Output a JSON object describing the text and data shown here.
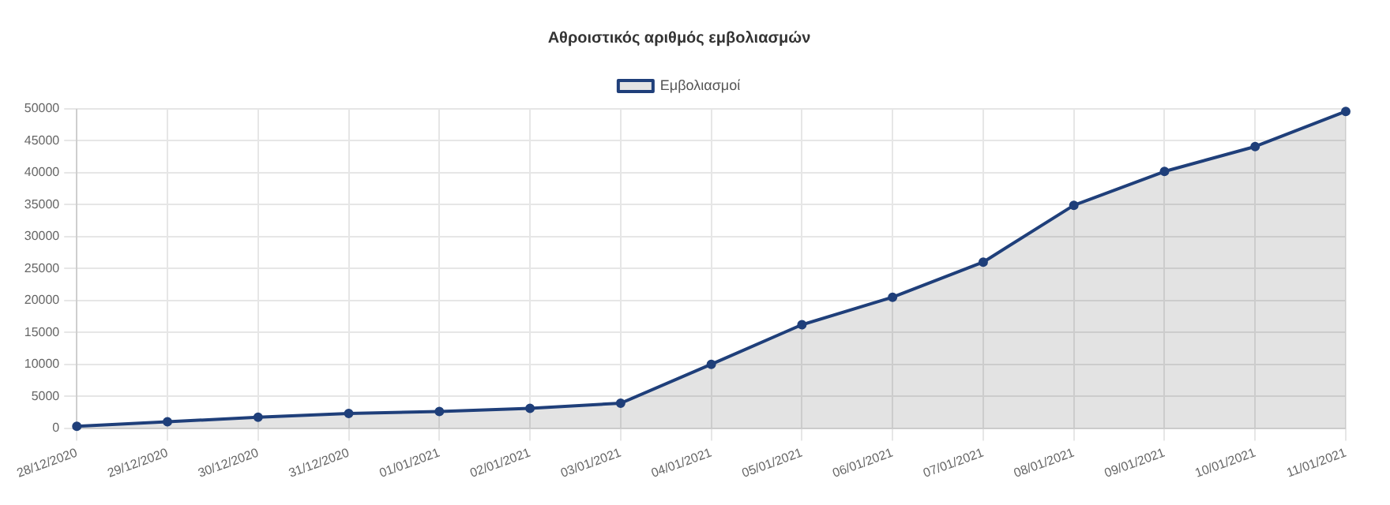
{
  "chart_data": {
    "type": "area",
    "title": "Αθροιστικός αριθμός εμβολιασμών",
    "categories": [
      "28/12/2020",
      "29/12/2020",
      "30/12/2020",
      "31/12/2020",
      "01/01/2021",
      "02/01/2021",
      "03/01/2021",
      "04/01/2021",
      "05/01/2021",
      "06/01/2021",
      "07/01/2021",
      "08/01/2021",
      "09/01/2021",
      "10/01/2021",
      "11/01/2021"
    ],
    "series": [
      {
        "name": "Εμβολιασμοί",
        "color": "#1f3f7a",
        "values": [
          300,
          1000,
          1700,
          2300,
          2600,
          3100,
          3900,
          10000,
          16200,
          20500,
          26000,
          34900,
          40200,
          44100,
          49600
        ]
      }
    ],
    "ylim": [
      0,
      50000
    ],
    "yticks": [
      0,
      5000,
      10000,
      15000,
      20000,
      25000,
      30000,
      35000,
      40000,
      45000,
      50000
    ],
    "grid": true,
    "legend": "top",
    "marker": "circle",
    "line_style": "solid"
  }
}
